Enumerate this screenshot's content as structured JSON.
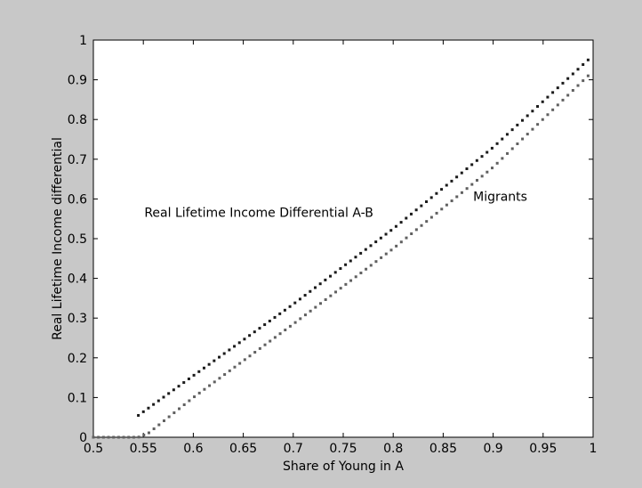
{
  "window": {
    "background": "#c8c8c8",
    "axes_background": "#ffffff"
  },
  "chart_data": {
    "type": "scatter",
    "title": "",
    "xlabel": "Share of Young in A",
    "ylabel": "Real Lifetime Income differential",
    "xlim": [
      0.5,
      1.0
    ],
    "ylim": [
      0,
      1
    ],
    "xticks": [
      "0.5",
      "0.55",
      "0.6",
      "0.65",
      "0.7",
      "0.75",
      "0.8",
      "0.85",
      "0.9",
      "0.95",
      "1"
    ],
    "yticks": [
      "0",
      "0.1",
      "0.2",
      "0.3",
      "0.4",
      "0.5",
      "0.6",
      "0.7",
      "0.8",
      "0.9",
      "1"
    ],
    "grid": false,
    "series": [
      {
        "name": "Real Lifetime Income Differential A-B",
        "color": "#1a1a1a",
        "x_start": 0.545,
        "x_end": 0.995,
        "n_points": 90,
        "knots": [
          {
            "x": 0.545,
            "y": 0.055
          },
          {
            "x": 0.6,
            "y": 0.155
          },
          {
            "x": 0.7,
            "y": 0.335
          },
          {
            "x": 0.8,
            "y": 0.525
          },
          {
            "x": 0.9,
            "y": 0.73
          },
          {
            "x": 0.995,
            "y": 0.95
          }
        ]
      },
      {
        "name": "Migrants",
        "color": "#606060",
        "x_start": 0.5,
        "x_end": 0.995,
        "n_points": 99,
        "knots": [
          {
            "x": 0.5,
            "y": 0.0
          },
          {
            "x": 0.545,
            "y": 0.0
          },
          {
            "x": 0.555,
            "y": 0.01
          },
          {
            "x": 0.6,
            "y": 0.1
          },
          {
            "x": 0.7,
            "y": 0.285
          },
          {
            "x": 0.8,
            "y": 0.475
          },
          {
            "x": 0.9,
            "y": 0.68
          },
          {
            "x": 0.995,
            "y": 0.91
          }
        ]
      }
    ],
    "annotations": [
      {
        "text": "Real Lifetime Income Differential A-B",
        "x": 0.551,
        "y": 0.555
      },
      {
        "text": "Migrants",
        "x": 0.88,
        "y": 0.595
      }
    ]
  }
}
